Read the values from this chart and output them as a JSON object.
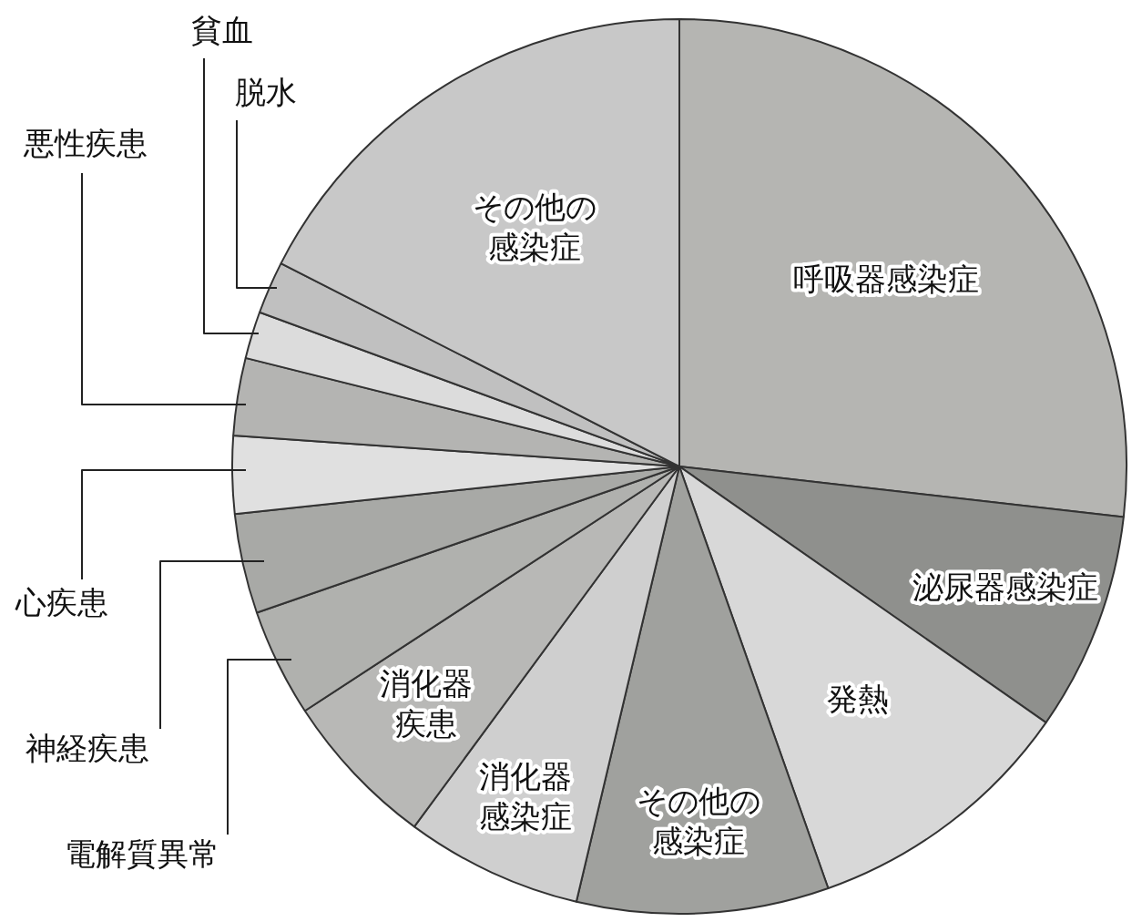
{
  "chart_data": {
    "type": "pie",
    "categories": [
      "呼吸器感染症",
      "泌尿器感染症",
      "発熱",
      "その他の感染症",
      "消化器感染症",
      "消化器疾患",
      "電解質異常",
      "神経疾患",
      "心疾患",
      "悪性疾患",
      "貧血",
      "脱水",
      "その他の感染症"
    ],
    "values": [
      26.8,
      7.9,
      9.9,
      9.1,
      6.4,
      5.7,
      3.9,
      3.6,
      2.8,
      2.8,
      1.7,
      1.9,
      17.5
    ],
    "colors": [
      "#b5b5b2",
      "#8f908d",
      "#d8d8d8",
      "#a0a19e",
      "#cfcfcf",
      "#b8b8b6",
      "#b0b1ae",
      "#a8a9a6",
      "#e0e0e0",
      "#b4b4b2",
      "#dcdcdc",
      "#c0c0c0",
      "#c8c8c8"
    ],
    "legend": false
  }
}
